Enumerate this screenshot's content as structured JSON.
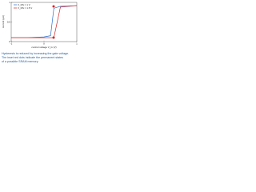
{
  "chart_data": {
    "type": "line",
    "x_label": "control voltage V_G (V)",
    "y_label": "current (μA)",
    "x": [
      -1,
      -0.5,
      0,
      0.2,
      0.3,
      0.5,
      1
    ],
    "series": [
      {
        "name": "V_DS = 1 V",
        "color": "#2a6fd0",
        "values": [
          0.1,
          0.1,
          0.12,
          0.15,
          0.85,
          0.9,
          0.92
        ]
      },
      {
        "name": "V_DS = 1.5 V",
        "color": "#d02a2a",
        "values": [
          0.1,
          0.1,
          0.1,
          0.1,
          0.1,
          0.88,
          0.92
        ]
      }
    ],
    "xlim": [
      -1,
      1
    ],
    "xticks": [
      -1,
      0,
      1
    ],
    "ylim": [
      0,
      1
    ],
    "yticks": [
      0,
      0.5,
      1
    ],
    "caption": [
      "Hysteresis is reduced by increasing the gate voltage.",
      "The inset red dots indicate the permanent states",
      "of a possible SRAM memory."
    ]
  }
}
